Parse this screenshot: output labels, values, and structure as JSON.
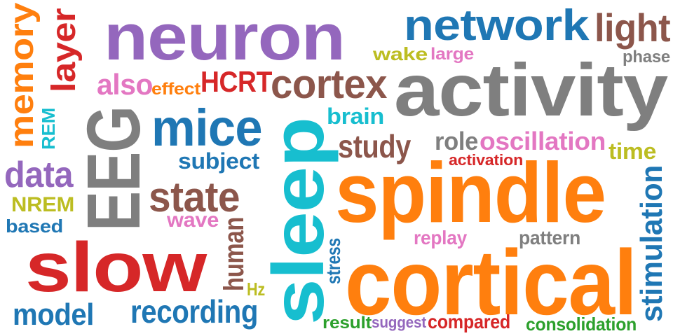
{
  "colors": {
    "purple": "#9467bd",
    "blue": "#1f77b4",
    "brown": "#8c564b",
    "gray": "#7f7f7f",
    "orange": "#ff7f0e",
    "red": "#d62728",
    "cyan": "#17becf",
    "olive": "#bcbd22",
    "pink": "#e377c2",
    "green": "#2ca02c"
  },
  "words": [
    {
      "text": "neuron",
      "color": "purple"
    },
    {
      "text": "network",
      "color": "blue"
    },
    {
      "text": "light",
      "color": "brown"
    },
    {
      "text": "activity",
      "color": "gray"
    },
    {
      "text": "spindle",
      "color": "orange"
    },
    {
      "text": "cortical",
      "color": "orange"
    },
    {
      "text": "sleep",
      "color": "cyan"
    },
    {
      "text": "slow",
      "color": "red"
    },
    {
      "text": "EEG",
      "color": "gray"
    },
    {
      "text": "mice",
      "color": "blue"
    },
    {
      "text": "memory",
      "color": "orange"
    },
    {
      "text": "layer",
      "color": "red"
    },
    {
      "text": "cortex",
      "color": "brown"
    },
    {
      "text": "stimulation",
      "color": "blue"
    },
    {
      "text": "state",
      "color": "brown"
    },
    {
      "text": "data",
      "color": "purple"
    },
    {
      "text": "recording",
      "color": "blue"
    },
    {
      "text": "model",
      "color": "blue"
    },
    {
      "text": "oscillation",
      "color": "pink"
    },
    {
      "text": "HCRT",
      "color": "red"
    },
    {
      "text": "also",
      "color": "pink"
    },
    {
      "text": "effect",
      "color": "orange"
    },
    {
      "text": "study",
      "color": "brown"
    },
    {
      "text": "subject",
      "color": "blue"
    },
    {
      "text": "role",
      "color": "gray"
    },
    {
      "text": "brain",
      "color": "cyan"
    },
    {
      "text": "wake",
      "color": "olive"
    },
    {
      "text": "large",
      "color": "pink"
    },
    {
      "text": "phase",
      "color": "gray"
    },
    {
      "text": "time",
      "color": "olive"
    },
    {
      "text": "activation",
      "color": "red"
    },
    {
      "text": "wave",
      "color": "pink"
    },
    {
      "text": "NREM",
      "color": "olive"
    },
    {
      "text": "based",
      "color": "blue"
    },
    {
      "text": "REM",
      "color": "cyan"
    },
    {
      "text": "human",
      "color": "brown"
    },
    {
      "text": "Hz",
      "color": "olive"
    },
    {
      "text": "stress",
      "color": "blue"
    },
    {
      "text": "replay",
      "color": "pink"
    },
    {
      "text": "pattern",
      "color": "gray"
    },
    {
      "text": "result",
      "color": "green"
    },
    {
      "text": "suggest",
      "color": "purple"
    },
    {
      "text": "compared",
      "color": "red"
    },
    {
      "text": "consolidation",
      "color": "green"
    }
  ]
}
